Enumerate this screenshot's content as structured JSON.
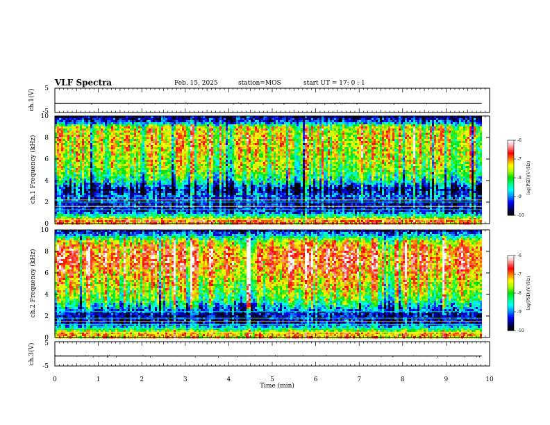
{
  "header": {
    "title": "VLF Spectra",
    "date": "Feb. 15, 2025",
    "station": "station=MOS",
    "start": "start  UT =   17: 0  : 1"
  },
  "colors": {
    "spectrum_scale": [
      "#000000",
      "#000070",
      "#0000ff",
      "#0090ff",
      "#00ffff",
      "#00ff80",
      "#00dd00",
      "#aaff00",
      "#ffff00",
      "#ff8000",
      "#ff0000",
      "#ff9090",
      "#ffffff"
    ]
  },
  "chart_data": [
    {
      "type": "line",
      "id": "ch1-voltage",
      "ylabel": "ch.1(V)",
      "ylim": [
        -5,
        5
      ],
      "ytick_labels": [
        "5",
        "-5"
      ],
      "xlim": [
        0,
        10
      ],
      "series": [
        {
          "trace_level_v": -1.2
        }
      ]
    },
    {
      "type": "heatmap",
      "id": "ch1-spectrogram",
      "ylabel": "ch.1 Frequency (kHz)",
      "ylim": [
        0,
        10
      ],
      "yticks": [
        0,
        2,
        4,
        6,
        8,
        10
      ],
      "xlim": [
        0,
        10
      ],
      "x_data_end_min": 9.82,
      "colorbar": {
        "label": "log(PSD)(V²/Hz)",
        "ticks": [
          "-6",
          "-7",
          "-8",
          "-9",
          "-10"
        ],
        "range": [
          -10,
          -6
        ]
      },
      "band_profile_khz": [
        [
          0.0,
          -7.2
        ],
        [
          0.3,
          -6.8
        ],
        [
          0.8,
          -8.3
        ],
        [
          1.2,
          -9.4
        ],
        [
          2.0,
          -9.5
        ],
        [
          2.6,
          -9.1
        ],
        [
          3.2,
          -9.7
        ],
        [
          4.1,
          -8.4
        ],
        [
          5.0,
          -7.9
        ],
        [
          6.5,
          -7.6
        ],
        [
          8.0,
          -7.4
        ],
        [
          9.0,
          -7.6
        ],
        [
          9.4,
          -9.2
        ],
        [
          10.0,
          -9.8
        ]
      ],
      "horizontal_lines_khz": [
        0.4,
        0.7,
        1.3,
        1.6,
        2.0,
        2.2
      ]
    },
    {
      "type": "heatmap",
      "id": "ch2-spectrogram",
      "ylabel": "ch.2 Frequency (kHz)",
      "ylim": [
        0,
        10
      ],
      "yticks": [
        0,
        2,
        4,
        6,
        8,
        10
      ],
      "xlim": [
        0,
        10
      ],
      "x_data_end_min": 9.82,
      "colorbar": {
        "label": "log(PSD)(V²/Hz)",
        "ticks": [
          "-6",
          "-7",
          "-8",
          "-9",
          "-10"
        ],
        "range": [
          -10,
          -6
        ]
      },
      "band_profile_khz": [
        [
          0.0,
          -7.3
        ],
        [
          0.4,
          -7.0
        ],
        [
          0.9,
          -8.4
        ],
        [
          1.4,
          -9.5
        ],
        [
          2.2,
          -9.5
        ],
        [
          2.8,
          -8.9
        ],
        [
          3.6,
          -8.0
        ],
        [
          4.5,
          -7.6
        ],
        [
          5.5,
          -7.3
        ],
        [
          6.5,
          -6.8
        ],
        [
          7.5,
          -6.7
        ],
        [
          8.4,
          -7.0
        ],
        [
          9.0,
          -7.6
        ],
        [
          9.5,
          -8.8
        ],
        [
          10.0,
          -9.7
        ]
      ],
      "horizontal_lines_khz": [
        0.5,
        0.8,
        1.2,
        1.5,
        1.8,
        2.4
      ]
    },
    {
      "type": "line",
      "id": "ch3-voltage",
      "ylabel": "ch.3(V)",
      "ylim": [
        -5,
        5
      ],
      "ytick_labels": [
        "5",
        "-5"
      ],
      "xlim": [
        0,
        10
      ],
      "series": [
        {
          "trace_level_v": -0.9
        }
      ]
    }
  ],
  "time_axis": {
    "xlabel": "Time  (min)",
    "ticks": [
      "0",
      "1",
      "2",
      "3",
      "4",
      "5",
      "6",
      "7",
      "8",
      "9",
      "10"
    ]
  }
}
